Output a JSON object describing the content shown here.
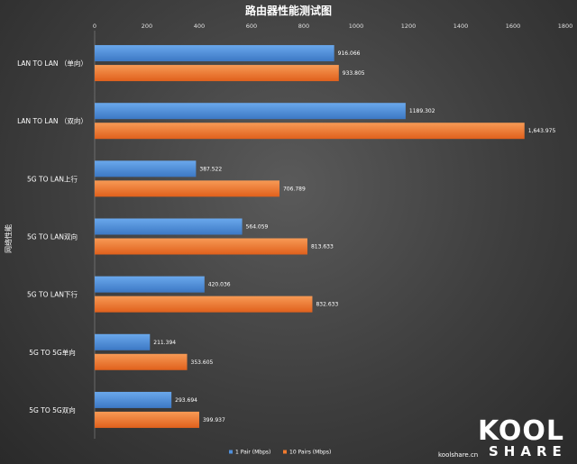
{
  "chart_data": {
    "type": "bar",
    "orientation": "horizontal",
    "title": "路由器性能测试图",
    "ylabel": "网络性能",
    "xlim": [
      0,
      1800
    ],
    "xticks": [
      0,
      200,
      400,
      600,
      800,
      1000,
      1200,
      1400,
      1600,
      1800
    ],
    "categories": [
      "LAN TO LAN （单向）",
      "LAN TO LAN （双向）",
      "5G TO LAN上行",
      "5G TO LAN双向",
      "5G TO LAN下行",
      "5G TO 5G单向",
      "5G TO 5G双向"
    ],
    "series": [
      {
        "name": "1 Pair (Mbps)",
        "color": "#4f8fdb",
        "values": [
          916.066,
          1189.302,
          387.522,
          564.059,
          420.036,
          211.394,
          293.694
        ],
        "labels": [
          "916.066",
          "1189.302",
          "387.522",
          "564.059",
          "420.036",
          "211.394",
          "293.694"
        ]
      },
      {
        "name": "10  Pairs (Mbps)",
        "color": "#f07a2e",
        "values": [
          933.805,
          1643.975,
          706.789,
          813.633,
          832.633,
          353.605,
          399.937
        ],
        "labels": [
          "933.805",
          "1,643.975",
          "706.789",
          "813.633",
          "832.633",
          "353.605",
          "399.937"
        ]
      }
    ],
    "legend_position": "bottom",
    "grid": false
  },
  "watermark": {
    "site": "koolshare.cn",
    "logo_main": "KOOL",
    "logo_sub": "SHARE"
  }
}
